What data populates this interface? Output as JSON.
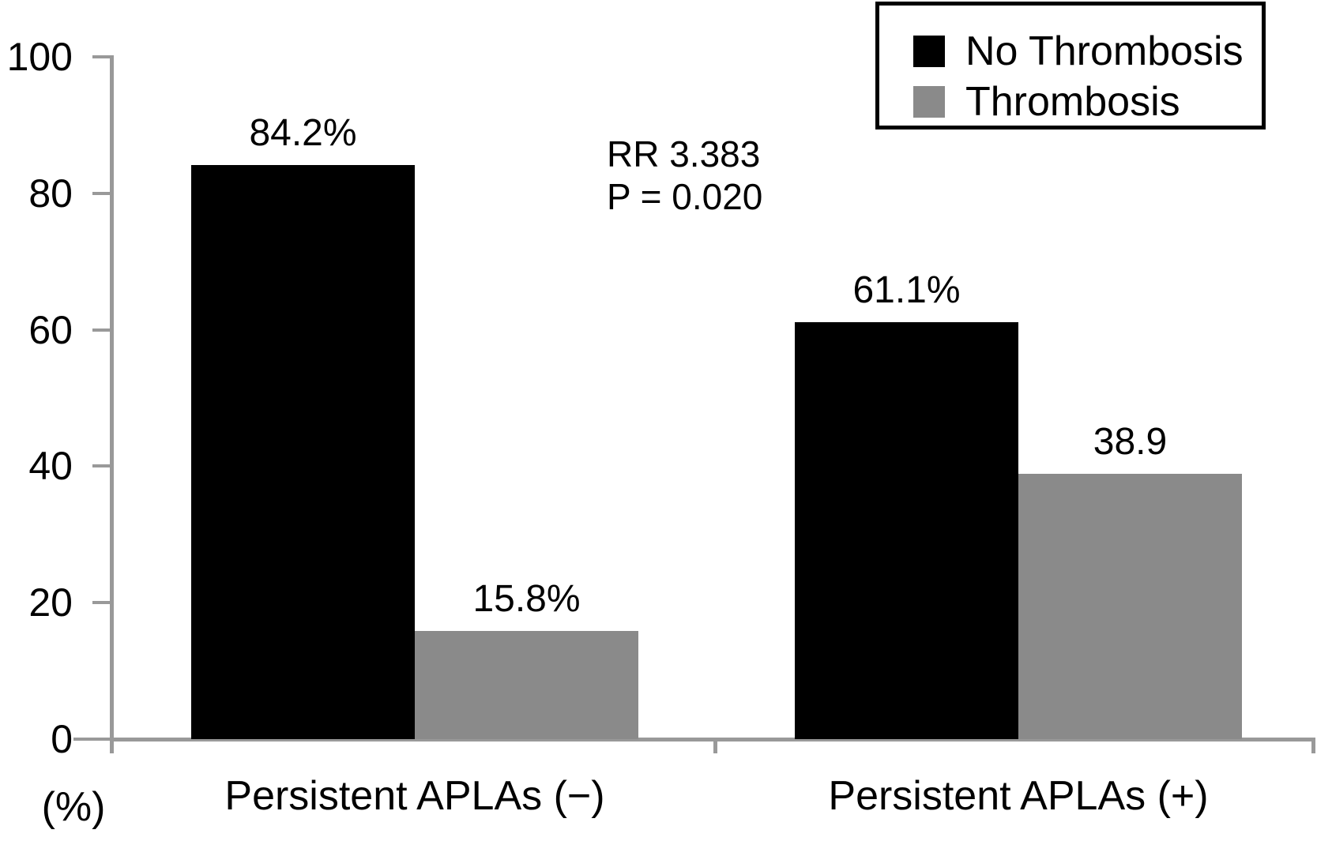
{
  "figure": {
    "background": "#ffffff",
    "text_color": "#000000",
    "axis_color": "#999999"
  },
  "chart_data": {
    "type": "bar",
    "categories": [
      "Persistent APLAs (−)",
      "Persistent APLAs (+)"
    ],
    "series": [
      {
        "name": "No Thrombosis",
        "color": "#000000",
        "values": [
          84.2,
          61.1
        ],
        "value_labels": [
          "84.2%",
          "61.1%"
        ]
      },
      {
        "name": "Thrombosis",
        "color": "#8a8a8a",
        "values": [
          15.8,
          38.9
        ],
        "value_labels": [
          "15.8%",
          "38.9"
        ]
      }
    ],
    "ylabel": "(%)",
    "ylim": [
      0,
      100
    ],
    "yticks": [
      0,
      20,
      40,
      60,
      80,
      100
    ],
    "ytick_labels": [
      "0",
      "20",
      "40",
      "60",
      "80",
      "100"
    ],
    "grid": false,
    "legend": {
      "position": "top-right",
      "border_color": "#000000",
      "entries": [
        {
          "label": "No Thrombosis",
          "color": "#000000"
        },
        {
          "label": "Thrombosis",
          "color": "#8a8a8a"
        }
      ]
    },
    "annotation": {
      "lines": [
        "RR 3.383",
        "P = 0.020"
      ]
    }
  }
}
